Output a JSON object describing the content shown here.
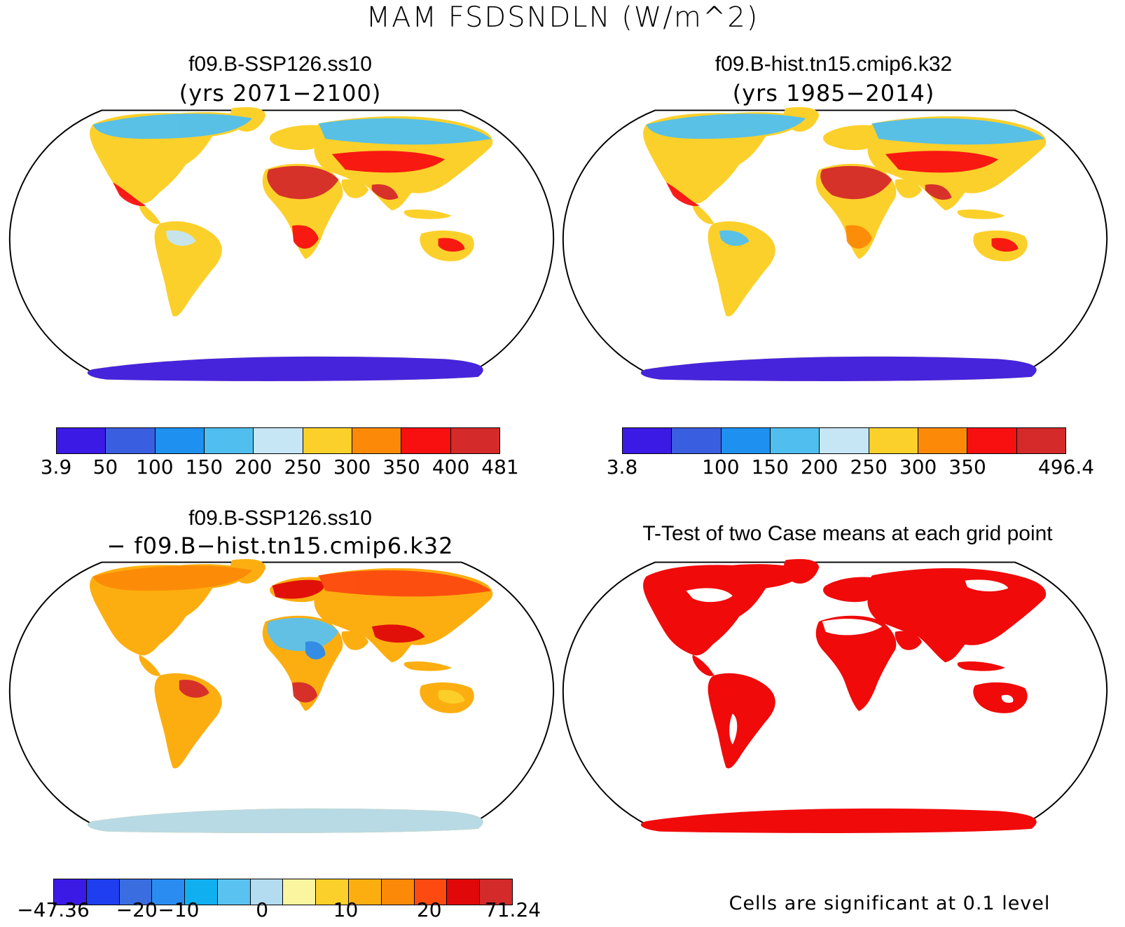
{
  "main_title": "MAM FSDSNDLN (W/m^2)",
  "panels": [
    {
      "title": "f09.B-SSP126.ss10",
      "subtitle": "(yrs 2071−2100)",
      "colorbar": {
        "colors": [
          "#3c1ae6",
          "#3a5ee0",
          "#1e90f0",
          "#50bff0",
          "#c6e6f6",
          "#fcd02a",
          "#fc8a08",
          "#f81010",
          "#d42a2a"
        ],
        "ticks": [
          "3.9",
          "50",
          "100",
          "150",
          "200",
          "250",
          "300",
          "350",
          "400",
          "481"
        ]
      }
    },
    {
      "title": "f09.B-hist.tn15.cmip6.k32",
      "subtitle": "(yrs 1985−2014)",
      "colorbar": {
        "colors": [
          "#3c1ae6",
          "#3a5ee0",
          "#1e90f0",
          "#50bff0",
          "#c6e6f6",
          "#fcd02a",
          "#fc8a08",
          "#f81010",
          "#d42a2a"
        ],
        "ticks": [
          "3.8",
          "",
          "100",
          "150",
          "200",
          "250",
          "300",
          "350",
          "",
          "496.4"
        ]
      }
    },
    {
      "title": "f09.B-SSP126.ss10",
      "subtitle": "− f09.B−hist.tn15.cmip6.k32",
      "colorbar": {
        "colors": [
          "#3c1ae6",
          "#1e3ef0",
          "#3a6ee0",
          "#2a8cf0",
          "#10b0f0",
          "#5ac2f0",
          "#b4dcf0",
          "#fcf5a0",
          "#fcd02a",
          "#fcae10",
          "#fc8a08",
          "#fc4a10",
          "#e00808",
          "#d42a2a"
        ],
        "ticks": [
          "−47.36",
          "",
          "−20",
          "−10",
          "",
          "0",
          "",
          "10",
          "",
          "20",
          "",
          "71.24"
        ]
      }
    },
    {
      "title": "T-Test of two Case means at each grid point",
      "note": "Cells are significant at 0.1 level"
    }
  ]
}
